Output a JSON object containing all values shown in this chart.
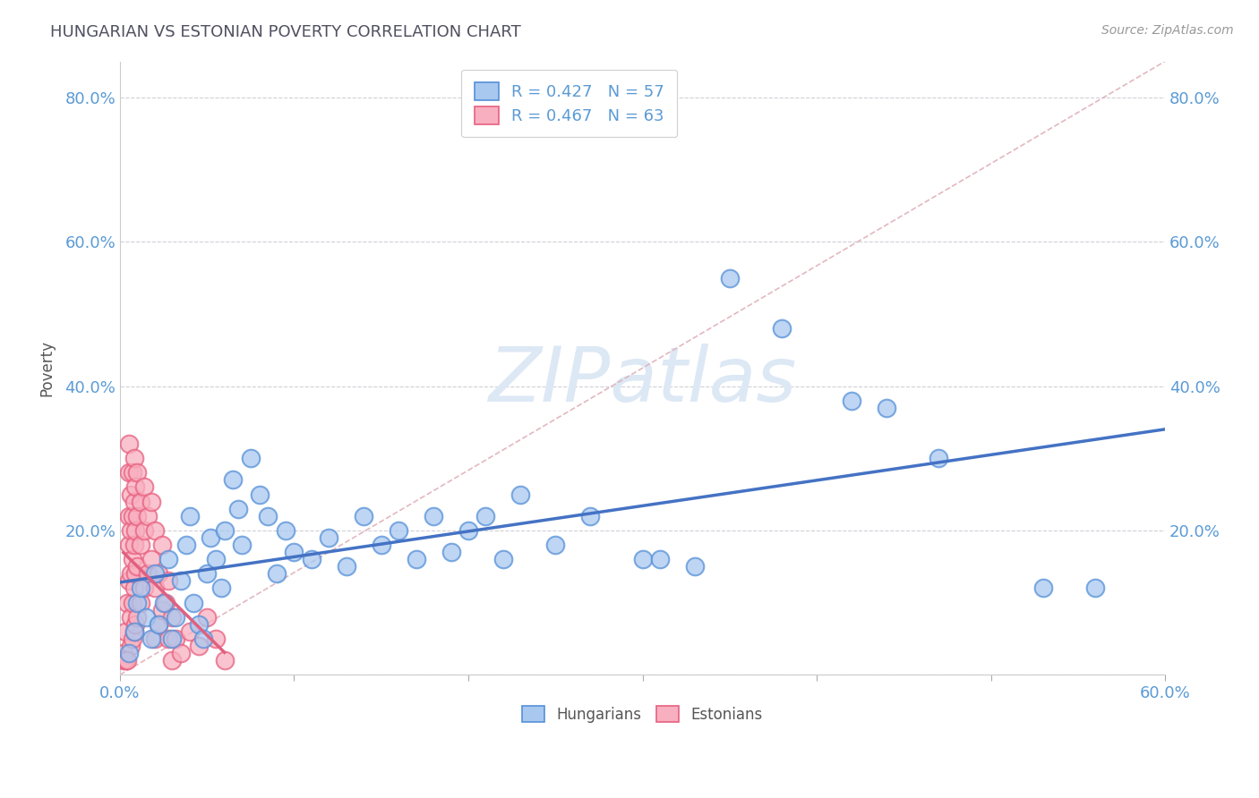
{
  "title": "HUNGARIAN VS ESTONIAN POVERTY CORRELATION CHART",
  "source": "Source: ZipAtlas.com",
  "xlim": [
    0.0,
    0.6
  ],
  "ylim": [
    0.0,
    0.85
  ],
  "hungarian_R": 0.427,
  "hungarian_N": 57,
  "estonian_R": 0.467,
  "estonian_N": 63,
  "hungarian_color": "#a8c8f0",
  "estonian_color": "#f8b0c0",
  "hungarian_edge_color": "#5590d8",
  "estonian_edge_color": "#e86080",
  "hungarian_line_color": "#4472c4",
  "estonian_line_color": "#e06080",
  "diagonal_color": "#d0a0a0",
  "background_color": "#ffffff",
  "hungarian_scatter": [
    [
      0.005,
      0.03
    ],
    [
      0.008,
      0.06
    ],
    [
      0.01,
      0.1
    ],
    [
      0.012,
      0.12
    ],
    [
      0.015,
      0.08
    ],
    [
      0.018,
      0.05
    ],
    [
      0.02,
      0.14
    ],
    [
      0.022,
      0.07
    ],
    [
      0.025,
      0.1
    ],
    [
      0.028,
      0.16
    ],
    [
      0.03,
      0.05
    ],
    [
      0.032,
      0.08
    ],
    [
      0.035,
      0.13
    ],
    [
      0.038,
      0.18
    ],
    [
      0.04,
      0.22
    ],
    [
      0.042,
      0.1
    ],
    [
      0.045,
      0.07
    ],
    [
      0.048,
      0.05
    ],
    [
      0.05,
      0.14
    ],
    [
      0.052,
      0.19
    ],
    [
      0.055,
      0.16
    ],
    [
      0.058,
      0.12
    ],
    [
      0.06,
      0.2
    ],
    [
      0.065,
      0.27
    ],
    [
      0.068,
      0.23
    ],
    [
      0.07,
      0.18
    ],
    [
      0.075,
      0.3
    ],
    [
      0.08,
      0.25
    ],
    [
      0.085,
      0.22
    ],
    [
      0.09,
      0.14
    ],
    [
      0.095,
      0.2
    ],
    [
      0.1,
      0.17
    ],
    [
      0.11,
      0.16
    ],
    [
      0.12,
      0.19
    ],
    [
      0.13,
      0.15
    ],
    [
      0.14,
      0.22
    ],
    [
      0.15,
      0.18
    ],
    [
      0.16,
      0.2
    ],
    [
      0.17,
      0.16
    ],
    [
      0.18,
      0.22
    ],
    [
      0.19,
      0.17
    ],
    [
      0.2,
      0.2
    ],
    [
      0.21,
      0.22
    ],
    [
      0.22,
      0.16
    ],
    [
      0.23,
      0.25
    ],
    [
      0.25,
      0.18
    ],
    [
      0.27,
      0.22
    ],
    [
      0.3,
      0.16
    ],
    [
      0.31,
      0.16
    ],
    [
      0.33,
      0.15
    ],
    [
      0.35,
      0.55
    ],
    [
      0.38,
      0.48
    ],
    [
      0.42,
      0.38
    ],
    [
      0.44,
      0.37
    ],
    [
      0.47,
      0.3
    ],
    [
      0.53,
      0.12
    ],
    [
      0.56,
      0.12
    ]
  ],
  "estonian_scatter": [
    [
      0.002,
      0.03
    ],
    [
      0.003,
      0.06
    ],
    [
      0.004,
      0.1
    ],
    [
      0.005,
      0.13
    ],
    [
      0.005,
      0.18
    ],
    [
      0.005,
      0.22
    ],
    [
      0.005,
      0.28
    ],
    [
      0.005,
      0.32
    ],
    [
      0.006,
      0.04
    ],
    [
      0.006,
      0.08
    ],
    [
      0.006,
      0.14
    ],
    [
      0.006,
      0.2
    ],
    [
      0.006,
      0.25
    ],
    [
      0.007,
      0.05
    ],
    [
      0.007,
      0.1
    ],
    [
      0.007,
      0.16
    ],
    [
      0.007,
      0.22
    ],
    [
      0.007,
      0.28
    ],
    [
      0.008,
      0.06
    ],
    [
      0.008,
      0.12
    ],
    [
      0.008,
      0.18
    ],
    [
      0.008,
      0.24
    ],
    [
      0.008,
      0.3
    ],
    [
      0.009,
      0.07
    ],
    [
      0.009,
      0.14
    ],
    [
      0.009,
      0.2
    ],
    [
      0.009,
      0.26
    ],
    [
      0.01,
      0.08
    ],
    [
      0.01,
      0.15
    ],
    [
      0.01,
      0.22
    ],
    [
      0.01,
      0.28
    ],
    [
      0.012,
      0.1
    ],
    [
      0.012,
      0.18
    ],
    [
      0.012,
      0.24
    ],
    [
      0.014,
      0.12
    ],
    [
      0.014,
      0.2
    ],
    [
      0.014,
      0.26
    ],
    [
      0.016,
      0.14
    ],
    [
      0.016,
      0.22
    ],
    [
      0.018,
      0.16
    ],
    [
      0.018,
      0.24
    ],
    [
      0.02,
      0.05
    ],
    [
      0.02,
      0.12
    ],
    [
      0.02,
      0.2
    ],
    [
      0.022,
      0.07
    ],
    [
      0.022,
      0.14
    ],
    [
      0.024,
      0.09
    ],
    [
      0.024,
      0.18
    ],
    [
      0.026,
      0.1
    ],
    [
      0.028,
      0.05
    ],
    [
      0.028,
      0.13
    ],
    [
      0.03,
      0.02
    ],
    [
      0.03,
      0.08
    ],
    [
      0.032,
      0.05
    ],
    [
      0.035,
      0.03
    ],
    [
      0.04,
      0.06
    ],
    [
      0.045,
      0.04
    ],
    [
      0.05,
      0.08
    ],
    [
      0.055,
      0.05
    ],
    [
      0.06,
      0.02
    ],
    [
      0.002,
      0.02
    ],
    [
      0.003,
      0.02
    ],
    [
      0.004,
      0.02
    ]
  ]
}
